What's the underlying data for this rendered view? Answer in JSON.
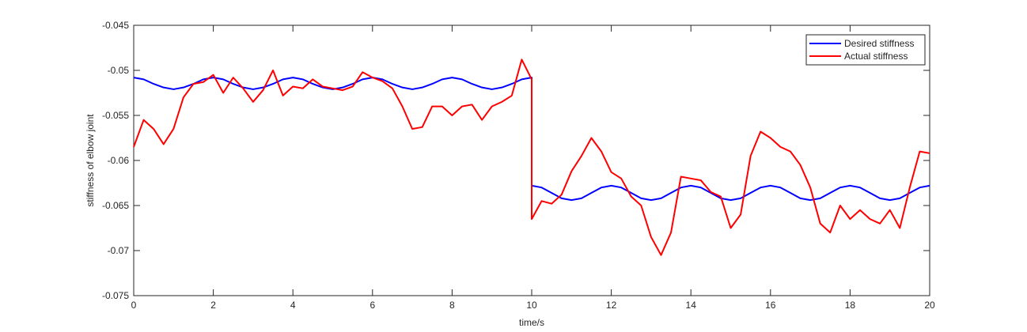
{
  "chart_data": {
    "type": "line",
    "xlabel": "time/s",
    "ylabel": "stiffness of elbow joint",
    "x": [
      0,
      0.25,
      0.5,
      0.75,
      1,
      1.25,
      1.5,
      1.75,
      2,
      2.25,
      2.5,
      2.75,
      3,
      3.25,
      3.5,
      3.75,
      4,
      4.25,
      4.5,
      4.75,
      5,
      5.25,
      5.5,
      5.75,
      6,
      6.25,
      6.5,
      6.75,
      7,
      7.25,
      7.5,
      7.75,
      8,
      8.25,
      8.5,
      8.75,
      9,
      9.25,
      9.5,
      9.75,
      10,
      10,
      10.25,
      10.5,
      10.75,
      11,
      11.25,
      11.5,
      11.75,
      12,
      12.25,
      12.5,
      12.75,
      13,
      13.25,
      13.5,
      13.75,
      14,
      14.25,
      14.5,
      14.75,
      15,
      15.25,
      15.5,
      15.75,
      16,
      16.25,
      16.5,
      16.75,
      17,
      17.25,
      17.5,
      17.75,
      18,
      18.25,
      18.5,
      18.75,
      19,
      19.25,
      19.5,
      19.75,
      20
    ],
    "series": [
      {
        "name": "Desired stiffness",
        "color": "#0000ff",
        "values": [
          -0.0508,
          -0.051,
          -0.0515,
          -0.0519,
          -0.0521,
          -0.0519,
          -0.0515,
          -0.051,
          -0.0508,
          -0.051,
          -0.0515,
          -0.0519,
          -0.0521,
          -0.0519,
          -0.0515,
          -0.051,
          -0.0508,
          -0.051,
          -0.0515,
          -0.0519,
          -0.0521,
          -0.0519,
          -0.0515,
          -0.051,
          -0.0508,
          -0.051,
          -0.0515,
          -0.0519,
          -0.0521,
          -0.0519,
          -0.0515,
          -0.051,
          -0.0508,
          -0.051,
          -0.0515,
          -0.0519,
          -0.0521,
          -0.0519,
          -0.0515,
          -0.051,
          -0.0508,
          -0.0628,
          -0.063,
          -0.0636,
          -0.0642,
          -0.0644,
          -0.0642,
          -0.0636,
          -0.063,
          -0.0628,
          -0.063,
          -0.0636,
          -0.0642,
          -0.0644,
          -0.0642,
          -0.0636,
          -0.063,
          -0.0628,
          -0.063,
          -0.0636,
          -0.0642,
          -0.0644,
          -0.0642,
          -0.0636,
          -0.063,
          -0.0628,
          -0.063,
          -0.0636,
          -0.0642,
          -0.0644,
          -0.0642,
          -0.0636,
          -0.063,
          -0.0628,
          -0.063,
          -0.0636,
          -0.0642,
          -0.0644,
          -0.0642,
          -0.0636,
          -0.063,
          -0.0628
        ]
      },
      {
        "name": "Actual stiffness",
        "color": "#ff0000",
        "values": [
          -0.0585,
          -0.0555,
          -0.0565,
          -0.0582,
          -0.0565,
          -0.053,
          -0.0515,
          -0.0513,
          -0.0505,
          -0.0525,
          -0.0508,
          -0.052,
          -0.0535,
          -0.0522,
          -0.05,
          -0.0528,
          -0.0518,
          -0.052,
          -0.051,
          -0.0518,
          -0.052,
          -0.0522,
          -0.0518,
          -0.0502,
          -0.0508,
          -0.0512,
          -0.052,
          -0.054,
          -0.0565,
          -0.0563,
          -0.054,
          -0.054,
          -0.055,
          -0.054,
          -0.0538,
          -0.0555,
          -0.054,
          -0.0535,
          -0.0528,
          -0.0488,
          -0.051,
          -0.0665,
          -0.0645,
          -0.0648,
          -0.0638,
          -0.0612,
          -0.0595,
          -0.0575,
          -0.059,
          -0.0613,
          -0.062,
          -0.064,
          -0.065,
          -0.0685,
          -0.0705,
          -0.068,
          -0.0618,
          -0.062,
          -0.0622,
          -0.0635,
          -0.064,
          -0.0675,
          -0.066,
          -0.0595,
          -0.0568,
          -0.0575,
          -0.0585,
          -0.059,
          -0.0605,
          -0.063,
          -0.067,
          -0.068,
          -0.065,
          -0.0665,
          -0.0655,
          -0.0665,
          -0.067,
          -0.0655,
          -0.0675,
          -0.063,
          -0.059,
          -0.0592
        ]
      }
    ],
    "xlim": [
      0,
      20
    ],
    "xticks": [
      0,
      2,
      4,
      6,
      8,
      10,
      12,
      14,
      16,
      18,
      20
    ],
    "ylim": [
      -0.075,
      -0.045
    ],
    "yticks": [
      -0.075,
      -0.07,
      -0.065,
      -0.06,
      -0.055,
      -0.05,
      -0.045
    ],
    "grid": false,
    "legend": "top-right"
  }
}
